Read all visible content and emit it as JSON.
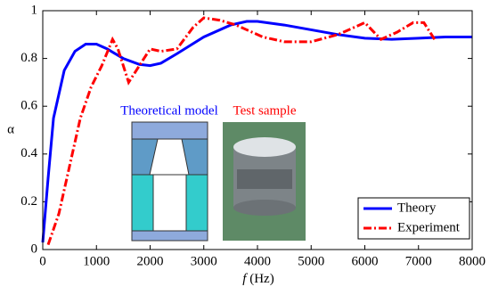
{
  "chart_data": {
    "type": "line",
    "xlabel_italic": "f",
    "xlabel": "(Hz)",
    "ylabel": "α",
    "xlim": [
      0,
      8000
    ],
    "xticks": [
      0,
      1000,
      2000,
      3000,
      4000,
      5000,
      6000,
      7000,
      8000
    ],
    "ylim": [
      0,
      1
    ],
    "yticks": [
      0,
      0.2,
      0.4,
      0.6,
      0.8,
      1
    ],
    "legend": "lower right",
    "annotations": [
      {
        "text": "Theoretical model",
        "color": "#0000ff"
      },
      {
        "text": "Test sample",
        "color": "#ff0000"
      }
    ],
    "series": [
      {
        "name": "Theory",
        "color": "#0000ff",
        "linestyle": "solid",
        "x": [
          0,
          100,
          200,
          400,
          600,
          800,
          1000,
          1200,
          1500,
          1800,
          2000,
          2200,
          2500,
          3000,
          3500,
          3800,
          4000,
          4500,
          5000,
          5500,
          6000,
          6500,
          7000,
          7500,
          8000
        ],
        "values": [
          0.03,
          0.3,
          0.55,
          0.75,
          0.83,
          0.86,
          0.86,
          0.84,
          0.8,
          0.775,
          0.77,
          0.78,
          0.82,
          0.89,
          0.94,
          0.955,
          0.955,
          0.94,
          0.92,
          0.9,
          0.885,
          0.88,
          0.885,
          0.89,
          0.89
        ]
      },
      {
        "name": "Experiment",
        "color": "#ff0000",
        "linestyle": "dashdot",
        "x": [
          100,
          300,
          500,
          700,
          900,
          1100,
          1300,
          1400,
          1600,
          1800,
          2000,
          2200,
          2500,
          2800,
          3000,
          3300,
          3600,
          3800,
          4100,
          4500,
          5000,
          5500,
          6000,
          6300,
          6600,
          6900,
          7100,
          7300
        ],
        "values": [
          0.02,
          0.15,
          0.35,
          0.55,
          0.68,
          0.77,
          0.88,
          0.84,
          0.7,
          0.77,
          0.84,
          0.83,
          0.84,
          0.93,
          0.97,
          0.96,
          0.94,
          0.92,
          0.89,
          0.87,
          0.87,
          0.9,
          0.95,
          0.88,
          0.91,
          0.95,
          0.95,
          0.88
        ]
      }
    ]
  }
}
